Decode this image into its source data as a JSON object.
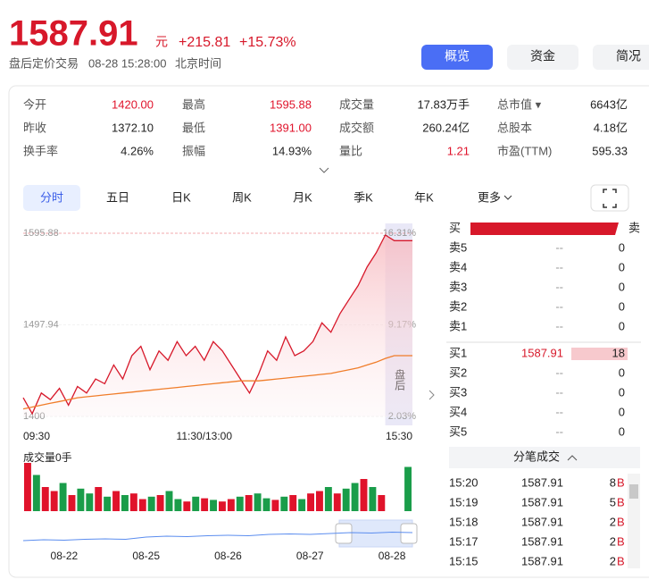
{
  "quote": {
    "price": 1587.91,
    "unit": "元",
    "change": "+215.81",
    "change_pct": "+15.73%",
    "status": "盘后定价交易",
    "time": "08-28 15:28:00",
    "tz": "北京时间"
  },
  "nav": [
    "概览",
    "资金",
    "简况"
  ],
  "stats": [
    [
      {
        "label": "今开",
        "value": "1420.00",
        "color": "#e0132b"
      },
      {
        "label": "最高",
        "value": "1595.88",
        "color": "#e0132b"
      },
      {
        "label": "成交量",
        "value": "17.83万手",
        "color": "#222222"
      },
      {
        "label": "总市值 ▾",
        "value": "6643亿",
        "color": "#222222"
      }
    ],
    [
      {
        "label": "昨收",
        "value": "1372.10",
        "color": "#222222"
      },
      {
        "label": "最低",
        "value": "1391.00",
        "color": "#e0132b"
      },
      {
        "label": "成交额",
        "value": "260.24亿",
        "color": "#222222"
      },
      {
        "label": "总股本",
        "value": "4.18亿",
        "color": "#222222"
      }
    ],
    [
      {
        "label": "换手率",
        "value": "4.26%",
        "color": "#222222"
      },
      {
        "label": "振幅",
        "value": "14.93%",
        "color": "#222222"
      },
      {
        "label": "量比",
        "value": "1.21",
        "color": "#e0132b"
      },
      {
        "label": "市盈(TTM)",
        "value": "595.33",
        "color": "#222222"
      }
    ]
  ],
  "tabs": [
    "分时",
    "五日",
    "日K",
    "周K",
    "月K",
    "季K",
    "年K",
    "更多"
  ],
  "chart_data": {
    "type": "line",
    "ylim": [
      1400,
      1595.88
    ],
    "yticks": [
      1400.0,
      1497.94,
      1595.88
    ],
    "y2lim": [
      2.03,
      16.31
    ],
    "y2ticks": [
      {
        "value": 2.03,
        "label": "2.03%"
      },
      {
        "value": 9.17,
        "label": "9.17%"
      },
      {
        "value": 16.31,
        "label": "16.31%"
      }
    ],
    "xticks": [
      {
        "value": 0,
        "label": "09:30"
      },
      {
        "value": 20,
        "label": "11:30/13:00"
      },
      {
        "value": 43,
        "label": "15:30"
      }
    ],
    "post_label": "盘后",
    "post_start": 40,
    "series": [
      {
        "color": "#d7182a",
        "values": [
          1420,
          1403,
          1425,
          1418,
          1430,
          1412,
          1432,
          1425,
          1440,
          1435,
          1455,
          1440,
          1465,
          1475,
          1450,
          1470,
          1460,
          1480,
          1465,
          1475,
          1460,
          1480,
          1470,
          1455,
          1440,
          1425,
          1445,
          1470,
          1460,
          1485,
          1465,
          1470,
          1480,
          1500,
          1490,
          1510,
          1525,
          1540,
          1560,
          1575,
          1594,
          1587.91,
          1587.91,
          1587.91
        ]
      },
      {
        "color": "#f07d2a",
        "values": [
          1408,
          1410,
          1412,
          1414,
          1416,
          1418,
          1420,
          1421,
          1422,
          1423,
          1424,
          1425,
          1426,
          1427,
          1428,
          1429,
          1430,
          1431,
          1432,
          1433,
          1434,
          1435,
          1436,
          1437,
          1438,
          1438,
          1438,
          1439,
          1440,
          1441,
          1442,
          1443,
          1444,
          1445,
          1446,
          1448,
          1450,
          1452,
          1455,
          1458,
          1462,
          1465,
          1465,
          1465
        ]
      }
    ],
    "volume": {
      "title": "成交量0手",
      "values": [
        60,
        45,
        30,
        25,
        35,
        20,
        28,
        22,
        30,
        18,
        25,
        20,
        22,
        15,
        18,
        20,
        25,
        15,
        12,
        18,
        16,
        14,
        12,
        15,
        18,
        20,
        22,
        16,
        14,
        18,
        20,
        15,
        22,
        25,
        30,
        22,
        28,
        35,
        40,
        30,
        20,
        0,
        0,
        55
      ],
      "colors": [
        "#e0132b",
        "#1a9d4a",
        "#e0132b",
        "#e0132b",
        "#1a9d4a",
        "#e0132b",
        "#1a9d4a",
        "#1a9d4a",
        "#e0132b",
        "#1a9d4a",
        "#e0132b",
        "#1a9d4a",
        "#e0132b",
        "#e0132b",
        "#1a9d4a",
        "#e0132b",
        "#1a9d4a",
        "#1a9d4a",
        "#e0132b",
        "#1a9d4a",
        "#e0132b",
        "#1a9d4a",
        "#e0132b",
        "#e0132b",
        "#1a9d4a",
        "#e0132b",
        "#1a9d4a",
        "#1a9d4a",
        "#e0132b",
        "#1a9d4a",
        "#e0132b",
        "#1a9d4a",
        "#e0132b",
        "#e0132b",
        "#1a9d4a",
        "#e0132b",
        "#1a9d4a",
        "#1a9d4a",
        "#e0132b",
        "#1a9d4a",
        "#e0132b",
        "#1a9d4a",
        "#1a9d4a",
        "#1a9d4a"
      ]
    },
    "navigator": {
      "color": "#5b8def",
      "values": [
        30,
        32,
        31,
        33,
        34,
        33,
        38,
        40,
        39,
        41,
        42,
        41,
        44,
        45,
        44,
        46,
        48,
        47,
        49,
        48
      ],
      "xticks": [
        {
          "value": 2,
          "label": "08-22"
        },
        {
          "value": 6,
          "label": "08-25"
        },
        {
          "value": 10,
          "label": "08-26"
        },
        {
          "value": 14,
          "label": "08-27"
        },
        {
          "value": 18,
          "label": "08-28"
        }
      ]
    }
  },
  "book": {
    "buy_label": "买",
    "sell_label": "卖",
    "asks": [
      {
        "label": "卖5",
        "price": "--",
        "volume": 0
      },
      {
        "label": "卖4",
        "price": "--",
        "volume": 0
      },
      {
        "label": "卖3",
        "price": "--",
        "volume": 0
      },
      {
        "label": "卖2",
        "price": "--",
        "volume": 0
      },
      {
        "label": "卖1",
        "price": "--",
        "volume": 0
      }
    ],
    "bids": [
      {
        "label": "买1",
        "price": "1587.91",
        "volume": 18
      },
      {
        "label": "买2",
        "price": "--",
        "volume": 0
      },
      {
        "label": "买3",
        "price": "--",
        "volume": 0
      },
      {
        "label": "买4",
        "price": "--",
        "volume": 0
      },
      {
        "label": "买5",
        "price": "--",
        "volume": 0
      }
    ]
  },
  "trades": {
    "title": "分笔成交",
    "rows": [
      {
        "time": "15:20",
        "price": "1587.91",
        "volume": 8,
        "side": "B"
      },
      {
        "time": "15:19",
        "price": "1587.91",
        "volume": 5,
        "side": "B"
      },
      {
        "time": "15:18",
        "price": "1587.91",
        "volume": 2,
        "side": "B"
      },
      {
        "time": "15:17",
        "price": "1587.91",
        "volume": 2,
        "side": "B"
      },
      {
        "time": "15:15",
        "price": "1587.91",
        "volume": 2,
        "side": "B"
      }
    ]
  }
}
